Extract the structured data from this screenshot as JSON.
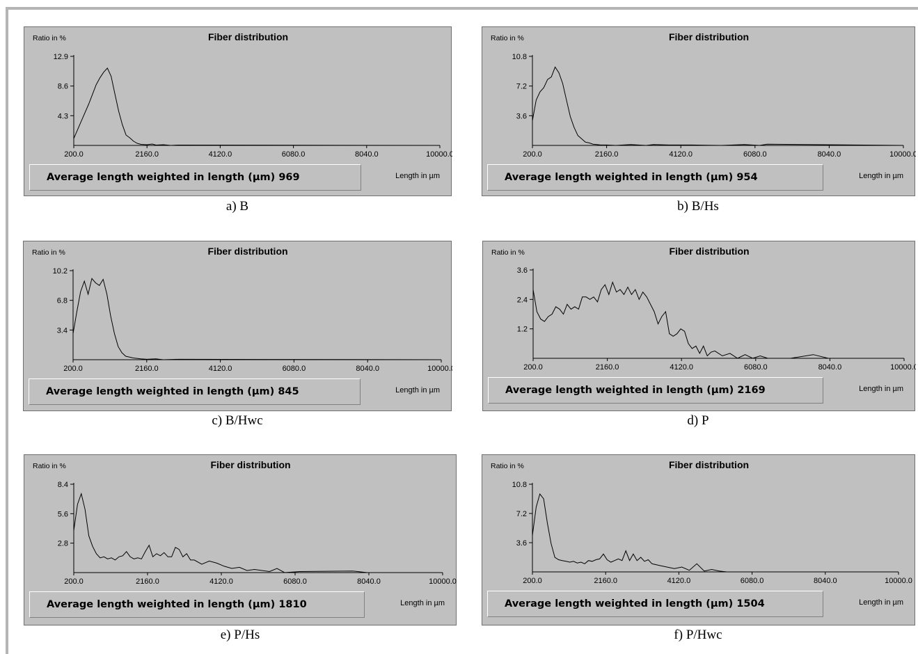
{
  "chart_data": [
    {
      "type": "line",
      "caption": "a) B",
      "title": "Fiber distribution",
      "ylabel": "Ratio in %",
      "xlabel": "Length in µm",
      "x_ticks": [
        "200.0",
        "2160.0",
        "4120.0",
        "6080.0",
        "8040.0",
        "10000.0"
      ],
      "y_ticks": [
        "4.3",
        "8.6",
        "12.9"
      ],
      "xlim": [
        200,
        10000
      ],
      "ylim": [
        0,
        12.9
      ],
      "summary_label": "Average length weighted in length (µm) 969",
      "series": [
        {
          "x": [
            200,
            400,
            600,
            800,
            900,
            1000,
            1100,
            1200,
            1300,
            1400,
            1500,
            1600,
            1700,
            1800,
            1900,
            2000,
            2160,
            2300,
            2400,
            2600,
            2800,
            3000,
            10000
          ],
          "y": [
            1.0,
            3.5,
            6.0,
            8.8,
            9.8,
            10.6,
            11.2,
            10.0,
            7.5,
            5.0,
            3.0,
            1.5,
            1.1,
            0.6,
            0.3,
            0.15,
            0.1,
            0.2,
            0.05,
            0.1,
            0.0,
            0.05,
            0.0
          ]
        }
      ]
    },
    {
      "type": "line",
      "caption": "b) B/Hs",
      "title": "Fiber distribution",
      "ylabel": "Ratio in %",
      "xlabel": "Length in µm",
      "x_ticks": [
        "200.0",
        "2160.0",
        "4120.0",
        "6080.0",
        "8040.0",
        "10000.0"
      ],
      "y_ticks": [
        "3.6",
        "7.2",
        "10.8"
      ],
      "xlim": [
        200,
        10000
      ],
      "ylim": [
        0,
        10.8
      ],
      "summary_label": "Average length weighted in length (µm) 954",
      "series": [
        {
          "x": [
            200,
            300,
            400,
            500,
            600,
            700,
            800,
            900,
            1000,
            1100,
            1200,
            1300,
            1400,
            1500,
            1600,
            1700,
            1800,
            1900,
            2000,
            2160,
            2400,
            2800,
            3200,
            3400,
            3800,
            4400,
            5200,
            5800,
            6200,
            6400,
            10000
          ],
          "y": [
            3.0,
            5.5,
            6.5,
            7.0,
            8.0,
            8.3,
            9.5,
            8.8,
            7.5,
            5.5,
            3.5,
            2.2,
            1.2,
            0.8,
            0.4,
            0.3,
            0.15,
            0.1,
            0.05,
            0.05,
            0.0,
            0.1,
            0.0,
            0.1,
            0.05,
            0.05,
            0.0,
            0.1,
            0.0,
            0.15,
            0.0
          ]
        }
      ]
    },
    {
      "type": "line",
      "caption": "c) B/Hwc",
      "title": "Fiber distribution",
      "ylabel": "Ratio in %",
      "xlabel": "Length in µm",
      "x_ticks": [
        "200.0",
        "2160.0",
        "4120.0",
        "6080.0",
        "8040.0",
        "10000.0"
      ],
      "y_ticks": [
        "3.4",
        "6.8",
        "10.2"
      ],
      "xlim": [
        200,
        10000
      ],
      "ylim": [
        0,
        10.2
      ],
      "summary_label": "Average length weighted in length (µm) 845",
      "series": [
        {
          "x": [
            200,
            300,
            400,
            500,
            600,
            700,
            800,
            900,
            1000,
            1100,
            1200,
            1300,
            1400,
            1500,
            1600,
            1700,
            1800,
            1900,
            2000,
            2160,
            2400,
            2600,
            3000,
            10000
          ],
          "y": [
            3.0,
            5.5,
            7.8,
            9.0,
            7.5,
            9.3,
            8.8,
            8.5,
            9.2,
            7.5,
            5.0,
            3.0,
            1.5,
            0.8,
            0.4,
            0.3,
            0.2,
            0.15,
            0.1,
            0.05,
            0.1,
            0.0,
            0.05,
            0.0
          ]
        }
      ]
    },
    {
      "type": "line",
      "caption": "d) P",
      "title": "Fiber distribution",
      "ylabel": "Ratio in %",
      "xlabel": "Length in µm",
      "x_ticks": [
        "200.0",
        "2160.0",
        "4120.0",
        "6080.0",
        "8040.0",
        "10000.0"
      ],
      "y_ticks": [
        "1.2",
        "2.4",
        "3.6"
      ],
      "xlim": [
        200,
        10000
      ],
      "ylim": [
        0,
        3.6
      ],
      "summary_label": "Average length weighted in length (µm) 2169",
      "series": [
        {
          "x": [
            200,
            300,
            400,
            500,
            600,
            700,
            800,
            900,
            1000,
            1100,
            1200,
            1300,
            1400,
            1500,
            1600,
            1700,
            1800,
            1900,
            2000,
            2100,
            2200,
            2300,
            2400,
            2500,
            2600,
            2700,
            2800,
            2900,
            3000,
            3100,
            3200,
            3300,
            3400,
            3500,
            3600,
            3700,
            3800,
            3900,
            4000,
            4100,
            4200,
            4300,
            4400,
            4500,
            4600,
            4700,
            4800,
            4900,
            5000,
            5200,
            5400,
            5600,
            5800,
            6000,
            6200,
            6400,
            7000,
            7600,
            8000,
            10000
          ],
          "y": [
            2.8,
            1.9,
            1.6,
            1.5,
            1.7,
            1.8,
            2.1,
            2.0,
            1.8,
            2.2,
            2.0,
            2.1,
            2.0,
            2.5,
            2.5,
            2.4,
            2.5,
            2.3,
            2.8,
            3.0,
            2.6,
            3.1,
            2.7,
            2.8,
            2.6,
            2.9,
            2.6,
            2.8,
            2.4,
            2.7,
            2.5,
            2.2,
            1.9,
            1.4,
            1.7,
            1.9,
            1.0,
            0.9,
            1.0,
            1.2,
            1.1,
            0.6,
            0.4,
            0.5,
            0.2,
            0.5,
            0.1,
            0.25,
            0.3,
            0.1,
            0.2,
            0.0,
            0.15,
            0.0,
            0.1,
            0.0,
            0.0,
            0.15,
            0.0,
            0.0
          ]
        }
      ]
    },
    {
      "type": "line",
      "caption": "e) P/Hs",
      "title": "Fiber distribution",
      "ylabel": "Ratio in %",
      "xlabel": "Length in µm",
      "x_ticks": [
        "200.0",
        "2160.0",
        "4120.0",
        "6080.0",
        "8040.0",
        "10000.0"
      ],
      "y_ticks": [
        "2.8",
        "5.6",
        "8.4"
      ],
      "xlim": [
        200,
        10000
      ],
      "ylim": [
        0,
        8.4
      ],
      "summary_label": "Average length weighted in length (µm) 1810",
      "series": [
        {
          "x": [
            200,
            300,
            400,
            500,
            600,
            700,
            800,
            900,
            1000,
            1100,
            1200,
            1300,
            1400,
            1500,
            1600,
            1700,
            1800,
            1900,
            2000,
            2100,
            2200,
            2300,
            2400,
            2500,
            2600,
            2700,
            2800,
            2900,
            3000,
            3100,
            3200,
            3300,
            3400,
            3600,
            3800,
            4000,
            4200,
            4400,
            4600,
            4800,
            5000,
            5400,
            5600,
            5800,
            6200,
            7600,
            8000,
            10000
          ],
          "y": [
            4.0,
            6.5,
            7.5,
            6.0,
            3.5,
            2.5,
            1.8,
            1.4,
            1.5,
            1.3,
            1.4,
            1.2,
            1.5,
            1.6,
            2.0,
            1.5,
            1.3,
            1.4,
            1.3,
            2.0,
            2.6,
            1.5,
            1.8,
            1.6,
            1.9,
            1.5,
            1.5,
            2.4,
            2.2,
            1.5,
            1.8,
            1.2,
            1.2,
            0.8,
            1.1,
            0.9,
            0.6,
            0.4,
            0.5,
            0.2,
            0.3,
            0.1,
            0.4,
            0.0,
            0.1,
            0.15,
            0.0,
            0.0
          ]
        }
      ]
    },
    {
      "type": "line",
      "caption": "f) P/Hwc",
      "title": "Fiber distribution",
      "ylabel": "Ratio in %",
      "xlabel": "Length in µm",
      "x_ticks": [
        "200.0",
        "2160.0",
        "4120.0",
        "6080.0",
        "8040.0",
        "10000.0"
      ],
      "y_ticks": [
        "3.6",
        "7.2",
        "10.8"
      ],
      "xlim": [
        200,
        10000
      ],
      "ylim": [
        0,
        10.8
      ],
      "summary_label": "Average length weighted in length (µm) 1504",
      "series": [
        {
          "x": [
            200,
            300,
            400,
            500,
            600,
            700,
            800,
            900,
            1000,
            1100,
            1200,
            1300,
            1400,
            1500,
            1600,
            1700,
            1800,
            1900,
            2000,
            2100,
            2200,
            2300,
            2400,
            2500,
            2600,
            2700,
            2800,
            2900,
            3000,
            3100,
            3200,
            3300,
            3400,
            3600,
            3800,
            4000,
            4200,
            4400,
            4600,
            4800,
            5000,
            5200,
            5400,
            10000
          ],
          "y": [
            4.5,
            8.0,
            9.6,
            9.0,
            6.0,
            3.5,
            1.8,
            1.5,
            1.4,
            1.3,
            1.2,
            1.3,
            1.1,
            1.2,
            1.0,
            1.4,
            1.3,
            1.5,
            1.6,
            2.2,
            1.5,
            1.2,
            1.4,
            1.6,
            1.4,
            2.6,
            1.4,
            2.2,
            1.4,
            1.8,
            1.3,
            1.5,
            1.0,
            0.8,
            0.6,
            0.4,
            0.6,
            0.2,
            1.0,
            0.1,
            0.3,
            0.1,
            0.0,
            0.0
          ]
        }
      ]
    }
  ]
}
